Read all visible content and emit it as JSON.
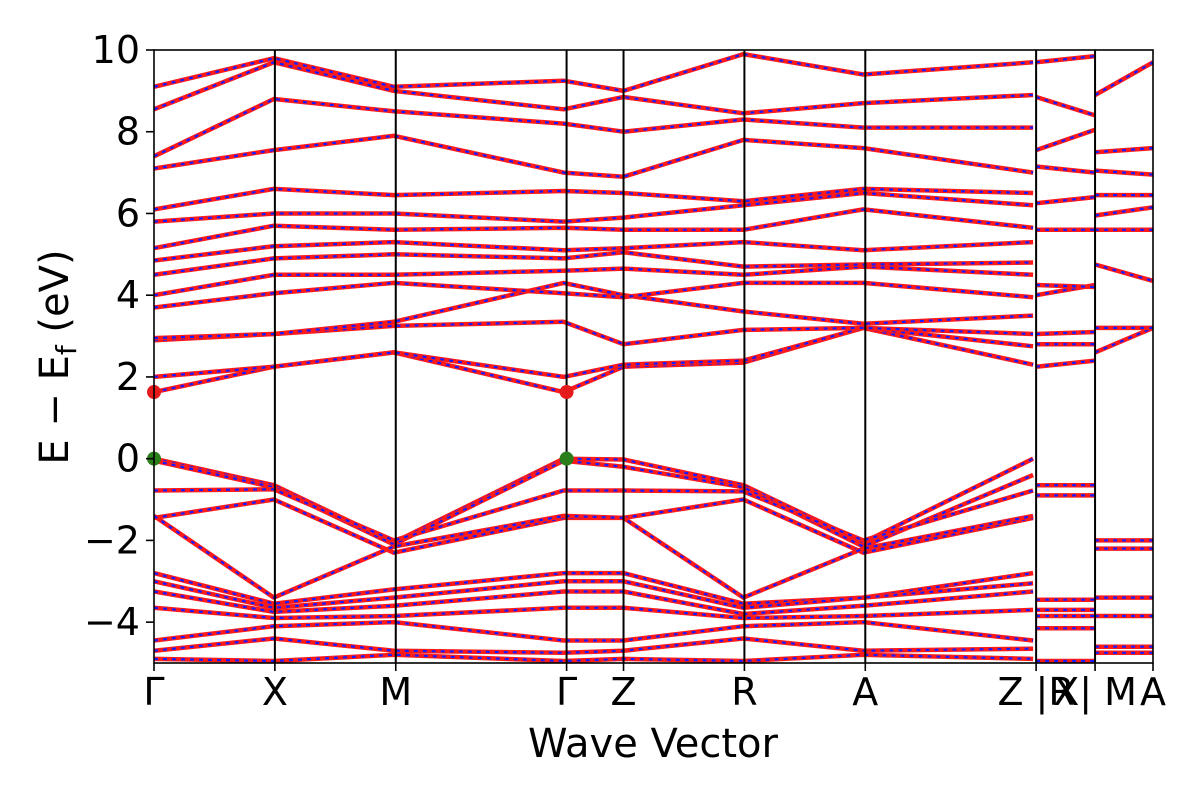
{
  "chart_data": {
    "type": "line",
    "title": "",
    "xlabel": "Wave Vector",
    "ylabel": "E − E",
    "ylabel_sub": "f",
    "ylabel_unit": " (eV)",
    "ylim": [
      -5,
      10
    ],
    "yticks": [
      -4,
      -2,
      0,
      2,
      4,
      6,
      8,
      10
    ],
    "yticklabels": [
      "−4",
      "−2",
      "0",
      "2",
      "4",
      "6",
      "8",
      "10"
    ],
    "xlim": [
      0,
      1
    ],
    "kpoints": [
      {
        "label": "Γ",
        "x": 0.0
      },
      {
        "label": "X",
        "x": 0.121
      },
      {
        "label": "M",
        "x": 0.242
      },
      {
        "label": "Γ",
        "x": 0.413
      },
      {
        "label": "Z",
        "x": 0.47
      },
      {
        "label": "R",
        "x": 0.591
      },
      {
        "label": "A",
        "x": 0.712
      },
      {
        "label": "Z |R",
        "x": 0.883
      },
      {
        "label": "X| M",
        "x": 0.942
      },
      {
        "label": "A",
        "x": 1.0
      }
    ],
    "vbm_cbm_markers": [
      {
        "x": 0.0,
        "y": 1.63,
        "color": "#e41a1c"
      },
      {
        "x": 0.413,
        "y": 1.63,
        "color": "#e41a1c"
      },
      {
        "x": 0.0,
        "y": 0.0,
        "color": "#2a7f1a"
      },
      {
        "x": 0.413,
        "y": 0.0,
        "color": "#2a7f1a"
      }
    ],
    "series": [
      {
        "x": [
          0.0,
          0.12,
          0.24,
          0.41,
          0.47,
          0.59,
          0.71,
          0.88
        ],
        "y": [
          0.0,
          -0.65,
          -2.05,
          0.0,
          -0.02,
          -0.65,
          -2.05,
          0.0
        ]
      },
      {
        "x": [
          0.0,
          0.12,
          0.24,
          0.41,
          0.47,
          0.59,
          0.71,
          0.88
        ],
        "y": [
          -0.05,
          -0.7,
          -2.1,
          -0.05,
          -0.2,
          -0.7,
          -2.15,
          -0.4
        ]
      },
      {
        "x": [
          0.0,
          0.12,
          0.24,
          0.41,
          0.47,
          0.59,
          0.71,
          0.88
        ],
        "y": [
          -0.78,
          -0.75,
          -2.0,
          -0.78,
          -0.78,
          -0.8,
          -2.0,
          -0.78
        ]
      },
      {
        "x": [
          0.0,
          0.12,
          0.24,
          0.41,
          0.47,
          0.59,
          0.71,
          0.88
        ],
        "y": [
          -1.45,
          -1.0,
          -2.3,
          -1.45,
          -1.45,
          -1.0,
          -2.3,
          -1.45
        ]
      },
      {
        "x": [
          0.0,
          0.12,
          0.24,
          0.41,
          0.47,
          0.59,
          0.71,
          0.88
        ],
        "y": [
          -1.4,
          -3.4,
          -2.15,
          -1.4,
          -1.45,
          -3.4,
          -2.2,
          -1.4
        ]
      },
      {
        "x": [
          0.0,
          0.12,
          0.24,
          0.41,
          0.47,
          0.59,
          0.71,
          0.88
        ],
        "y": [
          -2.8,
          -3.55,
          -3.2,
          -2.8,
          -2.8,
          -3.55,
          -3.4,
          -2.8
        ]
      },
      {
        "x": [
          0.0,
          0.12,
          0.24,
          0.41,
          0.47,
          0.59,
          0.71,
          0.88
        ],
        "y": [
          -3.0,
          -3.65,
          -3.4,
          -3.0,
          -3.0,
          -3.65,
          -3.4,
          -3.05
        ]
      },
      {
        "x": [
          0.0,
          0.12,
          0.24,
          0.41,
          0.47,
          0.59,
          0.71,
          0.88
        ],
        "y": [
          -3.25,
          -3.75,
          -3.6,
          -3.25,
          -3.25,
          -3.8,
          -3.6,
          -3.25
        ]
      },
      {
        "x": [
          0.0,
          0.12,
          0.24,
          0.41,
          0.47,
          0.59,
          0.71,
          0.88
        ],
        "y": [
          -3.65,
          -3.9,
          -3.85,
          -3.65,
          -3.65,
          -3.9,
          -3.85,
          -3.7
        ]
      },
      {
        "x": [
          0.0,
          0.12,
          0.24,
          0.41,
          0.47,
          0.59,
          0.71,
          0.88
        ],
        "y": [
          -4.45,
          -4.1,
          -4.0,
          -4.45,
          -4.45,
          -4.1,
          -4.0,
          -4.45
        ]
      },
      {
        "x": [
          0.0,
          0.12,
          0.24,
          0.41,
          0.47,
          0.59,
          0.71,
          0.88
        ],
        "y": [
          -4.7,
          -4.4,
          -4.7,
          -4.75,
          -4.7,
          -4.4,
          -4.7,
          -4.65
        ]
      },
      {
        "x": [
          0.0,
          0.12,
          0.24,
          0.41,
          0.47,
          0.59,
          0.71,
          0.88
        ],
        "y": [
          -4.9,
          -4.95,
          -4.8,
          -4.95,
          -4.9,
          -4.95,
          -4.8,
          -4.9
        ]
      },
      {
        "x": [
          0.0,
          0.12,
          0.24,
          0.41,
          0.47,
          0.59,
          0.71,
          0.88
        ],
        "y": [
          1.63,
          2.25,
          2.6,
          1.63,
          2.25,
          2.35,
          3.2,
          2.3
        ]
      },
      {
        "x": [
          0.0,
          0.12,
          0.24,
          0.41,
          0.47,
          0.59,
          0.71,
          0.88
        ],
        "y": [
          2.0,
          2.25,
          2.6,
          2.0,
          2.3,
          2.4,
          3.2,
          2.75
        ]
      },
      {
        "x": [
          0.0,
          0.12,
          0.24,
          0.41,
          0.47,
          0.59,
          0.71,
          0.88
        ],
        "y": [
          2.9,
          3.05,
          3.25,
          3.35,
          2.8,
          3.15,
          3.2,
          3.05
        ]
      },
      {
        "x": [
          0.0,
          0.12,
          0.24,
          0.41,
          0.47,
          0.59,
          0.71,
          0.88
        ],
        "y": [
          2.95,
          3.05,
          3.35,
          4.3,
          4.0,
          3.6,
          3.3,
          3.5
        ]
      },
      {
        "x": [
          0.0,
          0.12,
          0.24,
          0.41,
          0.47,
          0.59,
          0.71,
          0.88
        ],
        "y": [
          3.7,
          4.05,
          4.3,
          4.05,
          3.95,
          4.3,
          4.3,
          3.95
        ]
      },
      {
        "x": [
          0.0,
          0.12,
          0.24,
          0.41,
          0.47,
          0.59,
          0.71,
          0.88
        ],
        "y": [
          4.0,
          4.5,
          4.5,
          4.6,
          4.65,
          4.5,
          4.7,
          4.5
        ]
      },
      {
        "x": [
          0.0,
          0.12,
          0.24,
          0.41,
          0.47,
          0.59,
          0.71,
          0.88
        ],
        "y": [
          4.5,
          4.9,
          5.0,
          4.9,
          5.05,
          4.7,
          4.75,
          4.8
        ]
      },
      {
        "x": [
          0.0,
          0.12,
          0.24,
          0.41,
          0.47,
          0.59,
          0.71,
          0.88
        ],
        "y": [
          4.85,
          5.2,
          5.3,
          5.1,
          5.15,
          5.3,
          5.1,
          5.3
        ]
      },
      {
        "x": [
          0.0,
          0.12,
          0.24,
          0.41,
          0.47,
          0.59,
          0.71,
          0.88
        ],
        "y": [
          5.15,
          5.7,
          5.6,
          5.65,
          5.6,
          5.6,
          6.1,
          5.65
        ]
      },
      {
        "x": [
          0.0,
          0.12,
          0.24,
          0.41,
          0.47,
          0.59,
          0.71,
          0.88
        ],
        "y": [
          5.8,
          6.0,
          6.0,
          5.8,
          5.9,
          6.2,
          6.5,
          6.2
        ]
      },
      {
        "x": [
          0.0,
          0.12,
          0.24,
          0.41,
          0.47,
          0.59,
          0.71,
          0.88
        ],
        "y": [
          6.1,
          6.6,
          6.45,
          6.55,
          6.5,
          6.3,
          6.6,
          6.5
        ]
      },
      {
        "x": [
          0.0,
          0.12,
          0.24,
          0.41,
          0.47,
          0.59,
          0.71,
          0.88
        ],
        "y": [
          7.1,
          7.55,
          7.9,
          7.0,
          6.9,
          7.8,
          7.6,
          7.0
        ]
      },
      {
        "x": [
          0.0,
          0.12,
          0.24,
          0.41,
          0.47,
          0.59,
          0.71,
          0.88
        ],
        "y": [
          7.4,
          8.8,
          8.5,
          8.2,
          8.0,
          8.3,
          8.1,
          8.1
        ]
      },
      {
        "x": [
          0.0,
          0.12,
          0.24,
          0.41,
          0.47,
          0.59,
          0.71,
          0.88
        ],
        "y": [
          8.55,
          9.7,
          9.0,
          8.55,
          8.85,
          8.45,
          8.7,
          8.9
        ]
      },
      {
        "x": [
          0.0,
          0.12,
          0.24,
          0.41,
          0.47,
          0.59,
          0.71,
          0.88
        ],
        "y": [
          9.1,
          9.8,
          9.1,
          9.25,
          9.0,
          9.9,
          9.4,
          9.7
        ]
      },
      {
        "x": [
          0.883,
          0.942
        ],
        "y": [
          -0.65,
          -0.65
        ]
      },
      {
        "x": [
          0.883,
          0.942
        ],
        "y": [
          -0.9,
          -0.9
        ]
      },
      {
        "x": [
          0.883,
          0.942
        ],
        "y": [
          -3.45,
          -3.45
        ]
      },
      {
        "x": [
          0.883,
          0.942
        ],
        "y": [
          -3.7,
          -3.7
        ]
      },
      {
        "x": [
          0.883,
          0.942
        ],
        "y": [
          -3.85,
          -3.85
        ]
      },
      {
        "x": [
          0.883,
          0.942
        ],
        "y": [
          -4.15,
          -4.15
        ]
      },
      {
        "x": [
          0.883,
          0.942
        ],
        "y": [
          -4.95,
          -4.95
        ]
      },
      {
        "x": [
          0.883,
          0.942
        ],
        "y": [
          2.25,
          2.4
        ]
      },
      {
        "x": [
          0.883,
          0.942
        ],
        "y": [
          2.8,
          2.8
        ]
      },
      {
        "x": [
          0.883,
          0.942
        ],
        "y": [
          3.05,
          3.1
        ]
      },
      {
        "x": [
          0.883,
          0.942
        ],
        "y": [
          4.0,
          4.25
        ]
      },
      {
        "x": [
          0.883,
          0.942
        ],
        "y": [
          4.25,
          4.2
        ]
      },
      {
        "x": [
          0.883,
          0.942
        ],
        "y": [
          5.6,
          5.6
        ]
      },
      {
        "x": [
          0.883,
          0.942
        ],
        "y": [
          6.25,
          6.4
        ]
      },
      {
        "x": [
          0.883,
          0.942
        ],
        "y": [
          7.15,
          7.0
        ]
      },
      {
        "x": [
          0.883,
          0.942
        ],
        "y": [
          7.55,
          8.05
        ]
      },
      {
        "x": [
          0.883,
          0.942
        ],
        "y": [
          8.85,
          8.4
        ]
      },
      {
        "x": [
          0.883,
          0.942
        ],
        "y": [
          9.7,
          9.85
        ]
      },
      {
        "x": [
          0.942,
          1.0
        ],
        "y": [
          -2.0,
          -2.0
        ]
      },
      {
        "x": [
          0.942,
          1.0
        ],
        "y": [
          -2.2,
          -2.2
        ]
      },
      {
        "x": [
          0.942,
          1.0
        ],
        "y": [
          -3.4,
          -3.4
        ]
      },
      {
        "x": [
          0.942,
          1.0
        ],
        "y": [
          -3.85,
          -3.85
        ]
      },
      {
        "x": [
          0.942,
          1.0
        ],
        "y": [
          -4.6,
          -4.6
        ]
      },
      {
        "x": [
          0.942,
          1.0
        ],
        "y": [
          -4.75,
          -4.75
        ]
      },
      {
        "x": [
          0.942,
          1.0
        ],
        "y": [
          2.6,
          3.2
        ]
      },
      {
        "x": [
          0.942,
          1.0
        ],
        "y": [
          3.2,
          3.2
        ]
      },
      {
        "x": [
          0.942,
          1.0
        ],
        "y": [
          4.75,
          4.35
        ]
      },
      {
        "x": [
          0.942,
          1.0
        ],
        "y": [
          5.6,
          5.6
        ]
      },
      {
        "x": [
          0.942,
          1.0
        ],
        "y": [
          5.95,
          6.15
        ]
      },
      {
        "x": [
          0.942,
          1.0
        ],
        "y": [
          6.45,
          6.45
        ]
      },
      {
        "x": [
          0.942,
          1.0
        ],
        "y": [
          7.05,
          6.95
        ]
      },
      {
        "x": [
          0.942,
          1.0
        ],
        "y": [
          7.5,
          7.6
        ]
      },
      {
        "x": [
          0.942,
          1.0
        ],
        "y": [
          8.9,
          9.7
        ]
      }
    ]
  }
}
